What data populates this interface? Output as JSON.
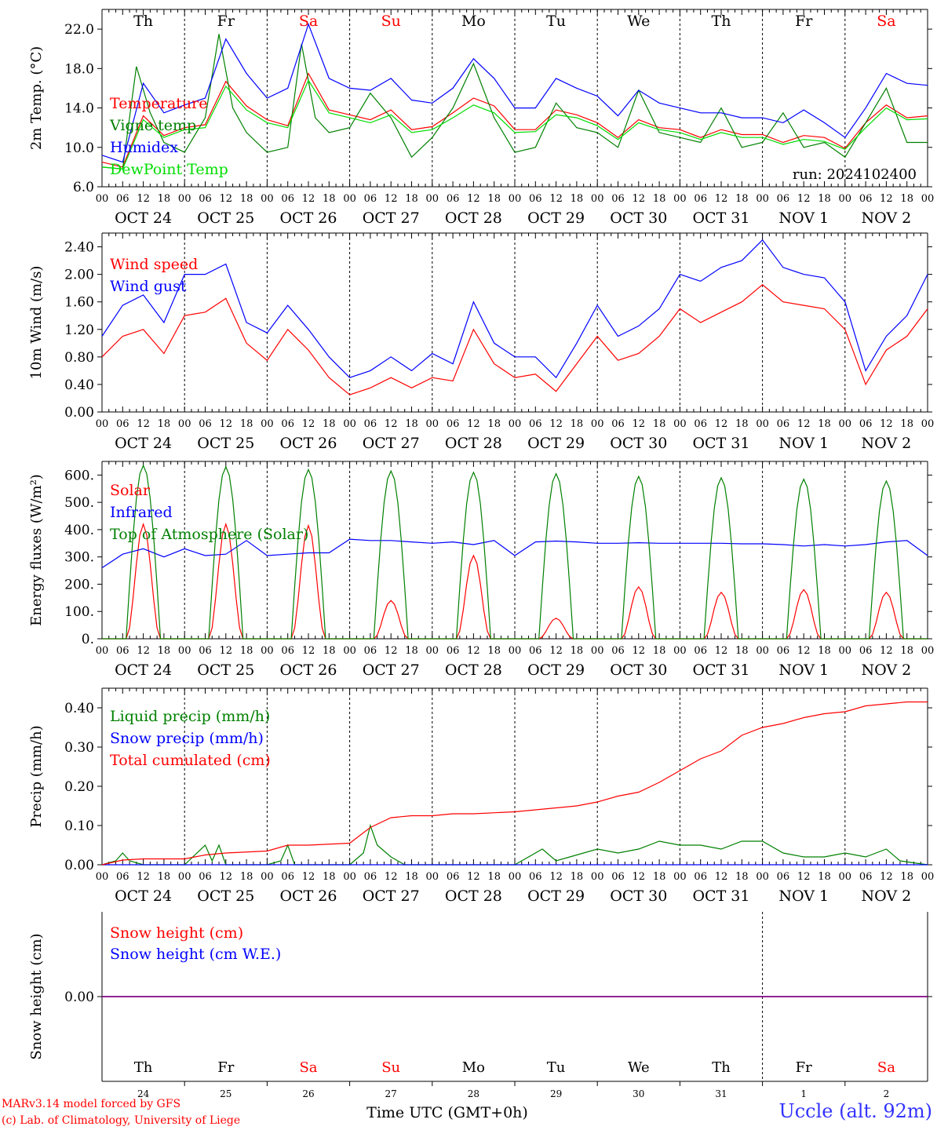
{
  "run_label": "run: 2024102400",
  "credit_line1": "MARv3.14 model forced by GFS",
  "credit_line2": "(c) Lab. of Climatology, University of Liege",
  "station": "Uccle (alt. 92m)",
  "time_axis_title": "Time UTC (GMT+0h)",
  "hour_ticks": [
    "00",
    "06",
    "12",
    "18"
  ],
  "days": [
    {
      "abbr": "Th",
      "date": "OCT 24",
      "short": "24",
      "weekend": false
    },
    {
      "abbr": "Fr",
      "date": "OCT 25",
      "short": "25",
      "weekend": false
    },
    {
      "abbr": "Sa",
      "date": "OCT 26",
      "short": "26",
      "weekend": true
    },
    {
      "abbr": "Su",
      "date": "OCT 27",
      "short": "27",
      "weekend": true
    },
    {
      "abbr": "Mo",
      "date": "OCT 28",
      "short": "28",
      "weekend": false
    },
    {
      "abbr": "Tu",
      "date": "OCT 29",
      "short": "29",
      "weekend": false
    },
    {
      "abbr": "We",
      "date": "OCT 30",
      "short": "30",
      "weekend": false
    },
    {
      "abbr": "Th",
      "date": "OCT 31",
      "short": "31",
      "weekend": false
    },
    {
      "abbr": "Fr",
      "date": "NOV  1",
      "short": "1",
      "weekend": false
    },
    {
      "abbr": "Sa",
      "date": "NOV  2",
      "short": "2",
      "weekend": true
    }
  ],
  "colors": {
    "red": "#ff0000",
    "green": "#008000",
    "blue": "#0000ff",
    "lightgreen": "#00dd00",
    "weekend": "#ff0000",
    "purple": "#800080"
  },
  "chart_data": [
    {
      "type": "line",
      "ylabel": "2m Temp. (°C)",
      "ylim": [
        6,
        24
      ],
      "yticks": [
        6,
        10,
        14,
        18,
        22
      ],
      "ytick_labels": [
        "6.0",
        "10.0",
        "14.0",
        "18.0",
        "22.0"
      ],
      "x_unit": "hours since OCT 24 00 UTC",
      "xlim": [
        0,
        240
      ],
      "series": [
        {
          "name": "Temperature",
          "color": "red",
          "x": [
            0,
            6,
            12,
            18,
            24,
            30,
            36,
            42,
            48,
            54,
            60,
            66,
            72,
            78,
            84,
            90,
            96,
            102,
            108,
            114,
            120,
            126,
            132,
            138,
            144,
            150,
            156,
            162,
            168,
            174,
            180,
            186,
            192,
            198,
            204,
            210,
            216,
            222,
            228,
            234,
            240
          ],
          "y": [
            8.5,
            8.0,
            13.2,
            11.2,
            12.0,
            12.3,
            16.7,
            14.2,
            12.8,
            12.2,
            17.5,
            13.8,
            13.3,
            12.8,
            13.8,
            11.8,
            12.1,
            13.5,
            15.0,
            14.2,
            11.8,
            11.8,
            13.8,
            13.3,
            12.5,
            11.0,
            12.8,
            12.0,
            11.8,
            11.0,
            11.8,
            11.3,
            11.3,
            10.5,
            11.2,
            11.0,
            9.9,
            12.5,
            14.3,
            13.0,
            13.2
          ]
        },
        {
          "name": "Vigne temp",
          "color": "green",
          "x": [
            0,
            6,
            10,
            14,
            18,
            24,
            30,
            34,
            38,
            42,
            48,
            54,
            58,
            62,
            66,
            72,
            78,
            84,
            90,
            96,
            102,
            108,
            114,
            120,
            126,
            132,
            138,
            144,
            150,
            156,
            162,
            168,
            174,
            180,
            186,
            192,
            198,
            204,
            210,
            216,
            222,
            228,
            234,
            240
          ],
          "y": [
            8.0,
            7.8,
            18.2,
            13.5,
            10.5,
            9.5,
            13.0,
            21.5,
            14.0,
            11.5,
            9.5,
            10.0,
            20.5,
            13.0,
            11.5,
            12.0,
            15.5,
            13.0,
            9.0,
            11.0,
            14.0,
            18.5,
            13.0,
            9.5,
            10.0,
            14.5,
            12.0,
            11.5,
            10.0,
            15.8,
            11.5,
            11.0,
            10.5,
            14.0,
            10.0,
            10.5,
            13.5,
            10.0,
            10.5,
            9.0,
            12.5,
            16.0,
            10.5,
            10.5
          ]
        },
        {
          "name": "Humidex",
          "color": "blue",
          "x": [
            0,
            6,
            12,
            18,
            24,
            30,
            36,
            42,
            48,
            54,
            60,
            66,
            72,
            78,
            84,
            90,
            96,
            102,
            108,
            114,
            120,
            126,
            132,
            138,
            144,
            150,
            156,
            162,
            168,
            174,
            180,
            186,
            192,
            198,
            204,
            210,
            216,
            222,
            228,
            234,
            240
          ],
          "y": [
            9.2,
            8.5,
            16.5,
            13.5,
            14.3,
            15.0,
            21.0,
            17.5,
            15.0,
            16.0,
            22.5,
            17.0,
            16.0,
            15.8,
            17.0,
            14.8,
            14.5,
            16.0,
            19.0,
            17.0,
            14.0,
            14.0,
            17.0,
            16.0,
            15.2,
            13.2,
            15.8,
            14.5,
            14.0,
            13.5,
            13.5,
            13.0,
            13.0,
            12.5,
            13.8,
            12.5,
            11.0,
            14.0,
            17.5,
            16.5,
            16.3
          ]
        },
        {
          "name": "DewPoint Temp",
          "color": "lightgreen",
          "x": [
            0,
            6,
            12,
            18,
            24,
            30,
            36,
            42,
            48,
            54,
            60,
            66,
            72,
            78,
            84,
            90,
            96,
            102,
            108,
            114,
            120,
            126,
            132,
            138,
            144,
            150,
            156,
            162,
            168,
            174,
            180,
            186,
            192,
            198,
            204,
            210,
            216,
            222,
            228,
            234,
            240
          ],
          "y": [
            8.0,
            7.8,
            12.8,
            11.0,
            11.8,
            12.0,
            16.2,
            13.8,
            12.5,
            12.0,
            16.8,
            13.5,
            13.0,
            12.5,
            13.3,
            11.5,
            11.8,
            13.0,
            14.3,
            13.5,
            11.5,
            11.6,
            13.3,
            13.0,
            12.2,
            10.8,
            12.5,
            11.8,
            11.5,
            10.8,
            11.5,
            11.0,
            11.0,
            10.3,
            10.8,
            10.6,
            9.8,
            12.0,
            14.0,
            12.8,
            12.9
          ]
        }
      ]
    },
    {
      "type": "line",
      "ylabel": "10m Wind (m/s)",
      "ylim": [
        0,
        2.6
      ],
      "yticks": [
        0,
        0.4,
        0.8,
        1.2,
        1.6,
        2.0,
        2.4
      ],
      "ytick_labels": [
        "0.00",
        "0.40",
        "0.80",
        "1.20",
        "1.60",
        "2.00",
        "2.40"
      ],
      "xlim": [
        0,
        240
      ],
      "series": [
        {
          "name": "Wind speed",
          "color": "red",
          "x": [
            0,
            6,
            12,
            18,
            24,
            30,
            36,
            42,
            48,
            54,
            60,
            66,
            72,
            78,
            84,
            90,
            96,
            102,
            108,
            114,
            120,
            126,
            132,
            138,
            144,
            150,
            156,
            162,
            168,
            174,
            180,
            186,
            192,
            198,
            204,
            210,
            216,
            222,
            228,
            234,
            240
          ],
          "y": [
            0.8,
            1.1,
            1.2,
            0.85,
            1.4,
            1.45,
            1.65,
            1.0,
            0.75,
            1.2,
            0.9,
            0.5,
            0.25,
            0.35,
            0.5,
            0.35,
            0.5,
            0.45,
            1.2,
            0.7,
            0.5,
            0.55,
            0.3,
            0.7,
            1.1,
            0.75,
            0.85,
            1.1,
            1.5,
            1.3,
            1.45,
            1.6,
            1.85,
            1.6,
            1.55,
            1.5,
            1.2,
            0.4,
            0.9,
            1.1,
            1.5
          ]
        },
        {
          "name": "Wind gust",
          "color": "blue",
          "x": [
            0,
            6,
            12,
            18,
            24,
            30,
            36,
            42,
            48,
            54,
            60,
            66,
            72,
            78,
            84,
            90,
            96,
            102,
            108,
            114,
            120,
            126,
            132,
            138,
            144,
            150,
            156,
            162,
            168,
            174,
            180,
            186,
            192,
            198,
            204,
            210,
            216,
            222,
            228,
            234,
            240
          ],
          "y": [
            1.1,
            1.55,
            1.7,
            1.3,
            2.0,
            2.0,
            2.15,
            1.3,
            1.15,
            1.55,
            1.2,
            0.8,
            0.5,
            0.6,
            0.8,
            0.6,
            0.85,
            0.7,
            1.6,
            1.0,
            0.8,
            0.8,
            0.5,
            1.0,
            1.55,
            1.1,
            1.25,
            1.5,
            2.0,
            1.9,
            2.1,
            2.2,
            2.5,
            2.1,
            2.0,
            1.95,
            1.6,
            0.6,
            1.1,
            1.4,
            2.0
          ]
        }
      ]
    },
    {
      "type": "line",
      "ylabel": "Energy fluxes (W/m²)",
      "ylim": [
        0,
        650
      ],
      "yticks": [
        0,
        100,
        200,
        300,
        400,
        500,
        600
      ],
      "ytick_labels": [
        "0.",
        "100.",
        "200.",
        "300.",
        "400.",
        "500.",
        "600."
      ],
      "xlim": [
        0,
        240
      ],
      "series": [
        {
          "name": "Solar",
          "color": "red",
          "peaks": [
            420,
            420,
            415,
            140,
            305,
            75,
            190,
            170,
            180,
            170
          ]
        },
        {
          "name": "Infrared",
          "color": "blue",
          "x": [
            0,
            6,
            12,
            18,
            24,
            30,
            36,
            42,
            48,
            54,
            60,
            66,
            72,
            78,
            84,
            90,
            96,
            102,
            108,
            114,
            120,
            126,
            132,
            138,
            144,
            150,
            156,
            162,
            168,
            174,
            180,
            186,
            192,
            198,
            204,
            210,
            216,
            222,
            228,
            234,
            240
          ],
          "y": [
            260,
            310,
            330,
            300,
            330,
            305,
            310,
            360,
            305,
            310,
            315,
            315,
            365,
            360,
            360,
            355,
            350,
            355,
            345,
            360,
            305,
            355,
            358,
            355,
            350,
            350,
            352,
            350,
            350,
            350,
            350,
            348,
            348,
            345,
            340,
            345,
            340,
            345,
            355,
            360,
            305
          ]
        },
        {
          "name": "Top of Atmosphere (Solar)",
          "color": "green",
          "peaks": [
            635,
            630,
            620,
            615,
            610,
            605,
            595,
            590,
            585,
            578
          ]
        }
      ]
    },
    {
      "type": "line",
      "ylabel": "Precip (mm/h)",
      "ylim": [
        0,
        0.45
      ],
      "yticks": [
        0,
        0.1,
        0.2,
        0.3,
        0.4
      ],
      "ytick_labels": [
        "0.00",
        "0.10",
        "0.20",
        "0.30",
        "0.40"
      ],
      "xlim": [
        0,
        240
      ],
      "series": [
        {
          "name": "Liquid precip (mm/h)",
          "color": "green",
          "x": [
            0,
            4,
            6,
            8,
            12,
            24,
            30,
            32,
            34,
            36,
            48,
            52,
            54,
            56,
            72,
            76,
            78,
            80,
            84,
            88,
            96,
            120,
            128,
            132,
            136,
            144,
            150,
            156,
            162,
            168,
            174,
            180,
            186,
            192,
            198,
            204,
            210,
            216,
            222,
            228,
            232,
            240
          ],
          "y": [
            0,
            0.01,
            0.03,
            0.01,
            0,
            0,
            0.05,
            0.01,
            0.05,
            0,
            0,
            0.01,
            0.05,
            0,
            0,
            0.03,
            0.1,
            0.05,
            0.02,
            0,
            0,
            0,
            0.04,
            0.01,
            0.02,
            0.04,
            0.03,
            0.04,
            0.06,
            0.05,
            0.05,
            0.04,
            0.06,
            0.06,
            0.03,
            0.02,
            0.02,
            0.03,
            0.02,
            0.04,
            0.01,
            0
          ]
        },
        {
          "name": "Snow precip (mm/h)",
          "color": "blue",
          "x": [
            0,
            240
          ],
          "y": [
            0,
            0
          ]
        },
        {
          "name": "Total cumulated (cm)",
          "color": "red",
          "x": [
            0,
            6,
            12,
            24,
            30,
            36,
            48,
            54,
            60,
            72,
            78,
            84,
            90,
            96,
            102,
            108,
            120,
            126,
            132,
            138,
            144,
            150,
            156,
            162,
            168,
            174,
            180,
            186,
            192,
            198,
            204,
            210,
            216,
            222,
            228,
            234,
            240
          ],
          "y": [
            0,
            0.012,
            0.015,
            0.015,
            0.025,
            0.03,
            0.035,
            0.05,
            0.05,
            0.055,
            0.095,
            0.12,
            0.125,
            0.125,
            0.13,
            0.13,
            0.135,
            0.14,
            0.145,
            0.15,
            0.16,
            0.175,
            0.185,
            0.21,
            0.24,
            0.27,
            0.29,
            0.33,
            0.35,
            0.36,
            0.375,
            0.385,
            0.39,
            0.405,
            0.41,
            0.415,
            0.415
          ]
        }
      ]
    },
    {
      "type": "line",
      "ylabel": "Snow height (cm)",
      "ylim": [
        -0.5,
        0.5
      ],
      "yticks": [
        0
      ],
      "ytick_labels": [
        "0.00"
      ],
      "xlim": [
        0,
        240
      ],
      "series": [
        {
          "name": "Snow height (cm)",
          "color": "red",
          "x": [
            0,
            240
          ],
          "y": [
            0,
            0
          ]
        },
        {
          "name": "Snow height (cm W.E.)",
          "color": "blue",
          "x": [
            0,
            240
          ],
          "y": [
            0,
            0
          ]
        }
      ]
    }
  ]
}
